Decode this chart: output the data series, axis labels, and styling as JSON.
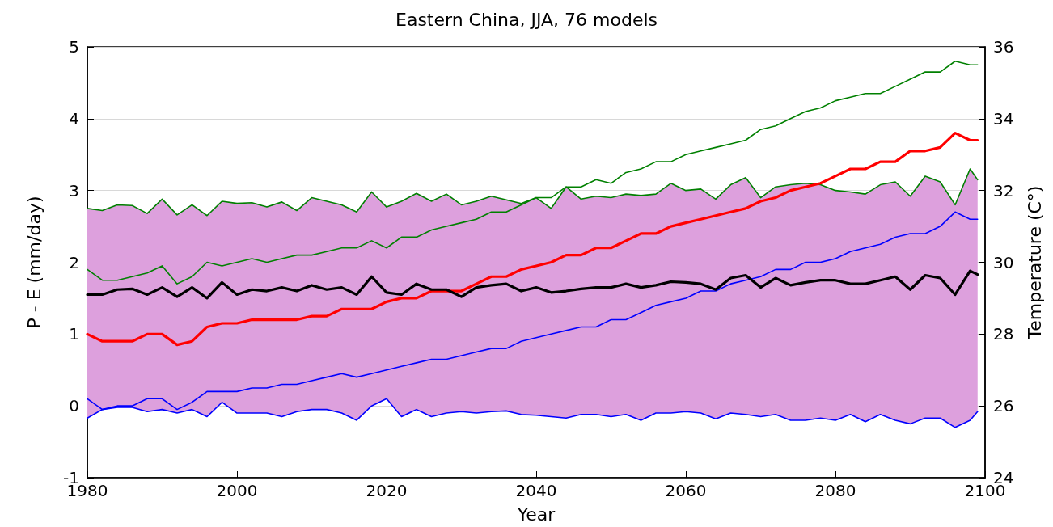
{
  "chart_data": {
    "type": "line",
    "title": "Eastern China, JJA, 76 models",
    "xlabel": "Year",
    "ylabel": "P - E (mm/day)",
    "y2label": "Temperature (C°)",
    "x": [
      1980,
      1982,
      1984,
      1986,
      1988,
      1990,
      1992,
      1994,
      1996,
      1998,
      2000,
      2002,
      2004,
      2006,
      2008,
      2010,
      2012,
      2014,
      2016,
      2018,
      2020,
      2022,
      2024,
      2026,
      2028,
      2030,
      2032,
      2034,
      2036,
      2038,
      2040,
      2042,
      2044,
      2046,
      2048,
      2050,
      2052,
      2054,
      2056,
      2058,
      2060,
      2062,
      2064,
      2066,
      2068,
      2070,
      2072,
      2074,
      2076,
      2078,
      2080,
      2082,
      2084,
      2086,
      2088,
      2090,
      2092,
      2094,
      2096,
      2098,
      2099
    ],
    "xlim": [
      1980,
      2100
    ],
    "xticks": [
      1980,
      2000,
      2020,
      2040,
      2060,
      2080,
      2100
    ],
    "ylim": [
      -1,
      5
    ],
    "yticks": [
      -1,
      0,
      1,
      2,
      3,
      4,
      5
    ],
    "y2lim": [
      24,
      36
    ],
    "y2ticks": [
      24,
      26,
      28,
      30,
      32,
      34,
      36
    ],
    "grid": "y",
    "marker": "none",
    "line_style": "solid",
    "series": [
      {
        "color": "#008000",
        "values": [
          2.75,
          2.72,
          2.8,
          2.79,
          2.68,
          2.88,
          2.66,
          2.8,
          2.65,
          2.85,
          2.82,
          2.83,
          2.77,
          2.84,
          2.72,
          2.9,
          2.85,
          2.8,
          2.7,
          2.98,
          2.77,
          2.85,
          2.96,
          2.85,
          2.95,
          2.8,
          2.85,
          2.92,
          2.87,
          2.82,
          2.9,
          2.75,
          3.05,
          2.88,
          2.92,
          2.9,
          2.95,
          2.93,
          2.95,
          3.1,
          3.0,
          3.02,
          2.88,
          3.08,
          3.18,
          2.9,
          3.05,
          3.08,
          3.1,
          3.08,
          3.0,
          2.98,
          2.95,
          3.08,
          3.12,
          2.92,
          3.2,
          3.12,
          2.8,
          3.3,
          3.15
        ]
      },
      {
        "color": "#0000ff",
        "values": [
          -0.17,
          -0.05,
          -0.02,
          -0.02,
          -0.08,
          -0.05,
          -0.1,
          -0.05,
          -0.15,
          0.05,
          -0.1,
          -0.1,
          -0.1,
          -0.15,
          -0.08,
          -0.05,
          -0.05,
          -0.1,
          -0.2,
          0.0,
          0.1,
          -0.15,
          -0.05,
          -0.15,
          -0.1,
          -0.08,
          -0.1,
          -0.08,
          -0.07,
          -0.12,
          -0.13,
          -0.15,
          -0.17,
          -0.12,
          -0.12,
          -0.15,
          -0.12,
          -0.2,
          -0.1,
          -0.1,
          -0.08,
          -0.1,
          -0.18,
          -0.1,
          -0.12,
          -0.15,
          -0.12,
          -0.2,
          -0.2,
          -0.17,
          -0.2,
          -0.12,
          -0.22,
          -0.12,
          -0.2,
          -0.25,
          -0.17,
          -0.17,
          -0.3,
          -0.2,
          -0.08
        ]
      },
      {
        "axis": "y2",
        "color": "#008000",
        "values": [
          29.8,
          29.5,
          29.5,
          29.6,
          29.7,
          29.9,
          29.4,
          29.6,
          30.0,
          29.9,
          30.0,
          30.1,
          30.0,
          30.1,
          30.2,
          30.2,
          30.3,
          30.4,
          30.4,
          30.6,
          30.4,
          30.7,
          30.7,
          30.9,
          31.0,
          31.1,
          31.2,
          31.4,
          31.4,
          31.6,
          31.8,
          31.8,
          32.1,
          32.1,
          32.3,
          32.2,
          32.5,
          32.6,
          32.8,
          32.8,
          33.0,
          33.1,
          33.2,
          33.3,
          33.4,
          33.7,
          33.8,
          34.0,
          34.2,
          34.3,
          34.5,
          34.6,
          34.7,
          34.7,
          34.9,
          35.1,
          35.3,
          35.3,
          35.6,
          35.5,
          35.5
        ]
      },
      {
        "axis": "y2",
        "color": "#0000ff",
        "values": [
          26.2,
          25.9,
          26.0,
          26.0,
          26.2,
          26.2,
          25.9,
          26.1,
          26.4,
          26.4,
          26.4,
          26.5,
          26.5,
          26.6,
          26.6,
          26.7,
          26.8,
          26.9,
          26.8,
          26.9,
          27.0,
          27.1,
          27.2,
          27.3,
          27.3,
          27.4,
          27.5,
          27.6,
          27.6,
          27.8,
          27.9,
          28.0,
          28.1,
          28.2,
          28.2,
          28.4,
          28.4,
          28.6,
          28.8,
          28.9,
          29.0,
          29.2,
          29.2,
          29.4,
          29.5,
          29.6,
          29.8,
          29.8,
          30.0,
          30.0,
          30.1,
          30.3,
          30.4,
          30.5,
          30.7,
          30.8,
          30.8,
          31.0,
          31.4,
          31.2,
          31.2
        ]
      },
      {
        "axis": "y2",
        "color": "#ff0000",
        "values": [
          28.0,
          27.8,
          27.8,
          27.8,
          28.0,
          28.0,
          27.7,
          27.8,
          28.2,
          28.3,
          28.3,
          28.4,
          28.4,
          28.4,
          28.4,
          28.5,
          28.5,
          28.7,
          28.7,
          28.7,
          28.9,
          29.0,
          29.0,
          29.2,
          29.2,
          29.2,
          29.4,
          29.6,
          29.6,
          29.8,
          29.9,
          30.0,
          30.2,
          30.2,
          30.4,
          30.4,
          30.6,
          30.8,
          30.8,
          31.0,
          31.1,
          31.2,
          31.3,
          31.4,
          31.5,
          31.7,
          31.8,
          32.0,
          32.1,
          32.2,
          32.4,
          32.6,
          32.6,
          32.8,
          32.8,
          33.1,
          33.1,
          33.2,
          33.6,
          33.4,
          33.4
        ]
      },
      {
        "color": "#000000",
        "values": [
          1.55,
          1.55,
          1.62,
          1.63,
          1.55,
          1.65,
          1.52,
          1.65,
          1.5,
          1.72,
          1.55,
          1.62,
          1.6,
          1.65,
          1.6,
          1.68,
          1.62,
          1.65,
          1.55,
          1.8,
          1.58,
          1.55,
          1.7,
          1.62,
          1.62,
          1.52,
          1.65,
          1.68,
          1.7,
          1.6,
          1.65,
          1.58,
          1.6,
          1.63,
          1.65,
          1.65,
          1.7,
          1.65,
          1.68,
          1.73,
          1.72,
          1.7,
          1.62,
          1.78,
          1.82,
          1.65,
          1.78,
          1.68,
          1.72,
          1.75,
          1.75,
          1.7,
          1.7,
          1.75,
          1.8,
          1.62,
          1.82,
          1.78,
          1.55,
          1.88,
          1.83
        ],
        "upper": [
          2.75,
          2.72,
          2.8,
          2.79,
          2.68,
          2.88,
          2.66,
          2.8,
          2.65,
          2.85,
          2.82,
          2.83,
          2.77,
          2.84,
          2.72,
          2.9,
          2.85,
          2.8,
          2.7,
          2.98,
          2.77,
          2.85,
          2.96,
          2.85,
          2.95,
          2.8,
          2.85,
          2.92,
          2.87,
          2.82,
          2.9,
          2.75,
          3.05,
          2.88,
          2.92,
          2.9,
          2.95,
          2.93,
          2.95,
          3.1,
          3.0,
          3.02,
          2.88,
          3.08,
          3.18,
          2.9,
          3.05,
          3.08,
          3.1,
          3.08,
          3.0,
          2.98,
          2.95,
          3.08,
          3.12,
          2.92,
          3.2,
          3.12,
          2.8,
          3.3,
          3.15
        ],
        "lower": [
          -0.17,
          -0.05,
          -0.02,
          -0.02,
          -0.08,
          -0.05,
          -0.1,
          -0.05,
          -0.15,
          0.05,
          -0.1,
          -0.1,
          -0.1,
          -0.15,
          -0.08,
          -0.05,
          -0.05,
          -0.1,
          -0.2,
          0.0,
          0.1,
          -0.15,
          -0.05,
          -0.15,
          -0.1,
          -0.08,
          -0.1,
          -0.08,
          -0.07,
          -0.12,
          -0.13,
          -0.15,
          -0.17,
          -0.12,
          -0.12,
          -0.15,
          -0.12,
          -0.2,
          -0.1,
          -0.1,
          -0.08,
          -0.1,
          -0.18,
          -0.1,
          -0.12,
          -0.15,
          -0.12,
          -0.2,
          -0.2,
          -0.17,
          -0.2,
          -0.12,
          -0.22,
          -0.12,
          -0.2,
          -0.25,
          -0.17,
          -0.17,
          -0.3,
          -0.2,
          -0.08
        ]
      }
    ]
  }
}
